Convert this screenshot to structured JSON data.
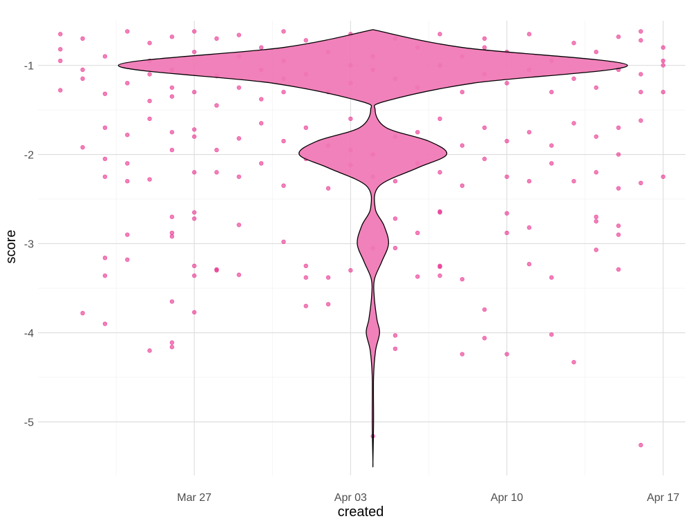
{
  "chart_data": {
    "type": "scatter",
    "overlay": "violin",
    "xlabel": "created",
    "ylabel": "score",
    "x_axis": {
      "type": "date",
      "range": [
        "2023-03-20",
        "2023-04-18"
      ],
      "ticks": [
        {
          "date": "2023-03-27",
          "label": "Mar 27"
        },
        {
          "date": "2023-04-03",
          "label": "Apr 03"
        },
        {
          "date": "2023-04-10",
          "label": "Apr 10"
        },
        {
          "date": "2023-04-17",
          "label": "Apr 17"
        }
      ]
    },
    "y_axis": {
      "range": [
        -5.6,
        -0.5
      ],
      "ticks": [
        -1,
        -2,
        -3,
        -4,
        -5
      ]
    },
    "grid": true,
    "legend": "none",
    "colors": {
      "point_fill": "#e7298a",
      "violin_fill": "#f076b4",
      "violin_stroke": "#000000",
      "grid": "#dcdcdc",
      "tick_text": "#4d4d4d"
    },
    "violin": {
      "x": "2023-04-04",
      "profile": [
        {
          "score": -0.6,
          "width_days": 0.0
        },
        {
          "score": -0.8,
          "width_days": 4.0
        },
        {
          "score": -1.0,
          "width_days": 11.4
        },
        {
          "score": -1.2,
          "width_days": 4.5
        },
        {
          "score": -1.4,
          "width_days": 0.6
        },
        {
          "score": -1.5,
          "width_days": 0.1
        },
        {
          "score": -1.7,
          "width_days": 0.6
        },
        {
          "score": -1.85,
          "width_days": 2.5
        },
        {
          "score": -2.0,
          "width_days": 3.3
        },
        {
          "score": -2.15,
          "width_days": 2.0
        },
        {
          "score": -2.35,
          "width_days": 0.3
        },
        {
          "score": -2.6,
          "width_days": 0.1
        },
        {
          "score": -2.8,
          "width_days": 0.5
        },
        {
          "score": -3.0,
          "width_days": 0.7
        },
        {
          "score": -3.2,
          "width_days": 0.4
        },
        {
          "score": -3.4,
          "width_days": 0.07
        },
        {
          "score": -3.6,
          "width_days": 0.06
        },
        {
          "score": -3.85,
          "width_days": 0.18
        },
        {
          "score": -4.0,
          "width_days": 0.3
        },
        {
          "score": -4.2,
          "width_days": 0.12
        },
        {
          "score": -4.5,
          "width_days": 0.03
        },
        {
          "score": -5.0,
          "width_days": 0.03
        },
        {
          "score": -5.45,
          "width_days": 0.0
        }
      ]
    },
    "points": [
      [
        "2023-03-21",
        -0.65
      ],
      [
        "2023-03-21",
        -0.82
      ],
      [
        "2023-03-21",
        -0.95
      ],
      [
        "2023-03-21",
        -1.28
      ],
      [
        "2023-03-22",
        -1.92
      ],
      [
        "2023-03-22",
        -3.78
      ],
      [
        "2023-03-22",
        -0.7
      ],
      [
        "2023-03-22",
        -1.05
      ],
      [
        "2023-03-22",
        -1.15
      ],
      [
        "2023-03-23",
        -1.7
      ],
      [
        "2023-03-23",
        -2.05
      ],
      [
        "2023-03-23",
        -2.25
      ],
      [
        "2023-03-23",
        -3.16
      ],
      [
        "2023-03-23",
        -3.36
      ],
      [
        "2023-03-23",
        -3.9
      ],
      [
        "2023-03-23",
        -0.9
      ],
      [
        "2023-03-23",
        -1.32
      ],
      [
        "2023-03-24",
        -0.62
      ],
      [
        "2023-03-24",
        -1.2
      ],
      [
        "2023-03-24",
        -1.78
      ],
      [
        "2023-03-24",
        -2.1
      ],
      [
        "2023-03-24",
        -2.3
      ],
      [
        "2023-03-24",
        -2.9
      ],
      [
        "2023-03-24",
        -3.18
      ],
      [
        "2023-03-25",
        -0.75
      ],
      [
        "2023-03-25",
        -1.1
      ],
      [
        "2023-03-25",
        -1.6
      ],
      [
        "2023-03-25",
        -2.28
      ],
      [
        "2023-03-25",
        -4.2
      ],
      [
        "2023-03-25",
        -0.95
      ],
      [
        "2023-03-25",
        -1.4
      ],
      [
        "2023-03-26",
        -0.68
      ],
      [
        "2023-03-26",
        -1.25
      ],
      [
        "2023-03-26",
        -1.95
      ],
      [
        "2023-03-26",
        -2.7
      ],
      [
        "2023-03-26",
        -2.88
      ],
      [
        "2023-03-26",
        -4.16
      ],
      [
        "2023-03-26",
        -1.75
      ],
      [
        "2023-03-26",
        -3.65
      ],
      [
        "2023-03-26",
        -2.92
      ],
      [
        "2023-03-26",
        -4.11
      ],
      [
        "2023-03-26",
        -1.05
      ],
      [
        "2023-03-26",
        -1.35
      ],
      [
        "2023-03-27",
        -0.62
      ],
      [
        "2023-03-27",
        -0.85
      ],
      [
        "2023-03-27",
        -1.3
      ],
      [
        "2023-03-27",
        -1.72
      ],
      [
        "2023-03-27",
        -2.2
      ],
      [
        "2023-03-27",
        -2.65
      ],
      [
        "2023-03-27",
        -2.72
      ],
      [
        "2023-03-27",
        -3.36
      ],
      [
        "2023-03-27",
        -3.25
      ],
      [
        "2023-03-27",
        -3.77
      ],
      [
        "2023-03-27",
        -1.8
      ],
      [
        "2023-03-28",
        -0.7
      ],
      [
        "2023-03-28",
        -1.12
      ],
      [
        "2023-03-28",
        -1.45
      ],
      [
        "2023-03-28",
        -1.95
      ],
      [
        "2023-03-28",
        -2.2
      ],
      [
        "2023-03-28",
        -3.3
      ],
      [
        "2023-03-28",
        -3.29
      ],
      [
        "2023-03-29",
        -0.66
      ],
      [
        "2023-03-29",
        -0.9
      ],
      [
        "2023-03-29",
        -1.25
      ],
      [
        "2023-03-29",
        -1.82
      ],
      [
        "2023-03-29",
        -2.25
      ],
      [
        "2023-03-29",
        -2.79
      ],
      [
        "2023-03-29",
        -3.35
      ],
      [
        "2023-03-30",
        -0.8
      ],
      [
        "2023-03-30",
        -1.05
      ],
      [
        "2023-03-30",
        -1.38
      ],
      [
        "2023-03-30",
        -1.65
      ],
      [
        "2023-03-30",
        -2.1
      ],
      [
        "2023-03-31",
        -0.62
      ],
      [
        "2023-03-31",
        -1.15
      ],
      [
        "2023-03-31",
        -1.3
      ],
      [
        "2023-03-31",
        -1.85
      ],
      [
        "2023-03-31",
        -2.35
      ],
      [
        "2023-03-31",
        -2.98
      ],
      [
        "2023-03-31",
        -0.95
      ],
      [
        "2023-04-01",
        -0.72
      ],
      [
        "2023-04-01",
        -1.1
      ],
      [
        "2023-04-01",
        -1.7
      ],
      [
        "2023-04-01",
        -2.05
      ],
      [
        "2023-04-01",
        -3.25
      ],
      [
        "2023-04-01",
        -3.38
      ],
      [
        "2023-04-01",
        -3.7
      ],
      [
        "2023-04-02",
        -0.85
      ],
      [
        "2023-04-02",
        -1.3
      ],
      [
        "2023-04-02",
        -1.9
      ],
      [
        "2023-04-02",
        -2.38
      ],
      [
        "2023-04-02",
        -3.38
      ],
      [
        "2023-04-02",
        -3.68
      ],
      [
        "2023-04-03",
        -0.65
      ],
      [
        "2023-04-03",
        -1.0
      ],
      [
        "2023-04-03",
        -1.2
      ],
      [
        "2023-04-03",
        -1.6
      ],
      [
        "2023-04-03",
        -1.95
      ],
      [
        "2023-04-03",
        -2.12
      ],
      [
        "2023-04-03",
        -3.3
      ],
      [
        "2023-04-04",
        -0.9
      ],
      [
        "2023-04-04",
        -1.05
      ],
      [
        "2023-04-04",
        -1.5
      ],
      [
        "2023-04-04",
        -2.0
      ],
      [
        "2023-04-04",
        -2.25
      ],
      [
        "2023-04-04",
        -3.05
      ],
      [
        "2023-04-04",
        -5.16
      ],
      [
        "2023-04-05",
        -0.7
      ],
      [
        "2023-04-05",
        -1.15
      ],
      [
        "2023-04-05",
        -1.8
      ],
      [
        "2023-04-05",
        -2.3
      ],
      [
        "2023-04-05",
        -2.72
      ],
      [
        "2023-04-05",
        -3.05
      ],
      [
        "2023-04-05",
        -4.18
      ],
      [
        "2023-04-05",
        -4.03
      ],
      [
        "2023-04-06",
        -0.8
      ],
      [
        "2023-04-06",
        -1.25
      ],
      [
        "2023-04-06",
        -1.75
      ],
      [
        "2023-04-06",
        -2.1
      ],
      [
        "2023-04-06",
        -3.37
      ],
      [
        "2023-04-06",
        -2.88
      ],
      [
        "2023-04-07",
        -0.65
      ],
      [
        "2023-04-07",
        -1.0
      ],
      [
        "2023-04-07",
        -1.6
      ],
      [
        "2023-04-07",
        -2.2
      ],
      [
        "2023-04-07",
        -2.65
      ],
      [
        "2023-04-07",
        -3.26
      ],
      [
        "2023-04-07",
        -2.64
      ],
      [
        "2023-04-07",
        -3.25
      ],
      [
        "2023-04-07",
        -3.36
      ],
      [
        "2023-04-08",
        -0.9
      ],
      [
        "2023-04-08",
        -1.3
      ],
      [
        "2023-04-08",
        -1.9
      ],
      [
        "2023-04-08",
        -2.35
      ],
      [
        "2023-04-08",
        -3.4
      ],
      [
        "2023-04-08",
        -4.24
      ],
      [
        "2023-04-09",
        -0.7
      ],
      [
        "2023-04-09",
        -1.1
      ],
      [
        "2023-04-09",
        -1.7
      ],
      [
        "2023-04-09",
        -2.05
      ],
      [
        "2023-04-09",
        -4.06
      ],
      [
        "2023-04-09",
        -3.74
      ],
      [
        "2023-04-09",
        -0.8
      ],
      [
        "2023-04-10",
        -0.85
      ],
      [
        "2023-04-10",
        -1.2
      ],
      [
        "2023-04-10",
        -1.85
      ],
      [
        "2023-04-10",
        -2.25
      ],
      [
        "2023-04-10",
        -2.66
      ],
      [
        "2023-04-10",
        -2.88
      ],
      [
        "2023-04-10",
        -4.24
      ],
      [
        "2023-04-11",
        -0.65
      ],
      [
        "2023-04-11",
        -1.05
      ],
      [
        "2023-04-11",
        -1.75
      ],
      [
        "2023-04-11",
        -2.3
      ],
      [
        "2023-04-11",
        -3.23
      ],
      [
        "2023-04-11",
        -2.82
      ],
      [
        "2023-04-12",
        -0.95
      ],
      [
        "2023-04-12",
        -1.3
      ],
      [
        "2023-04-12",
        -1.9
      ],
      [
        "2023-04-12",
        -2.1
      ],
      [
        "2023-04-12",
        -3.38
      ],
      [
        "2023-04-12",
        -4.02
      ],
      [
        "2023-04-13",
        -0.75
      ],
      [
        "2023-04-13",
        -1.15
      ],
      [
        "2023-04-13",
        -1.65
      ],
      [
        "2023-04-13",
        -2.3
      ],
      [
        "2023-04-13",
        -4.33
      ],
      [
        "2023-04-14",
        -0.85
      ],
      [
        "2023-04-14",
        -1.25
      ],
      [
        "2023-04-14",
        -1.8
      ],
      [
        "2023-04-14",
        -2.2
      ],
      [
        "2023-04-14",
        -2.75
      ],
      [
        "2023-04-14",
        -3.07
      ],
      [
        "2023-04-14",
        -2.7
      ],
      [
        "2023-04-15",
        -0.68
      ],
      [
        "2023-04-15",
        -1.05
      ],
      [
        "2023-04-15",
        -1.7
      ],
      [
        "2023-04-15",
        -2.0
      ],
      [
        "2023-04-15",
        -2.38
      ],
      [
        "2023-04-15",
        -2.8
      ],
      [
        "2023-04-15",
        -3.29
      ],
      [
        "2023-04-15",
        -2.9
      ],
      [
        "2023-04-16",
        -0.72
      ],
      [
        "2023-04-16",
        -1.1
      ],
      [
        "2023-04-16",
        -1.62
      ],
      [
        "2023-04-16",
        -2.32
      ],
      [
        "2023-04-16",
        -0.62
      ],
      [
        "2023-04-16",
        -5.26
      ],
      [
        "2023-04-16",
        -1.3
      ],
      [
        "2023-04-17",
        -0.8
      ],
      [
        "2023-04-17",
        -1.0
      ],
      [
        "2023-04-17",
        -1.3
      ],
      [
        "2023-04-17",
        -2.25
      ],
      [
        "2023-04-17",
        -0.95
      ]
    ]
  }
}
